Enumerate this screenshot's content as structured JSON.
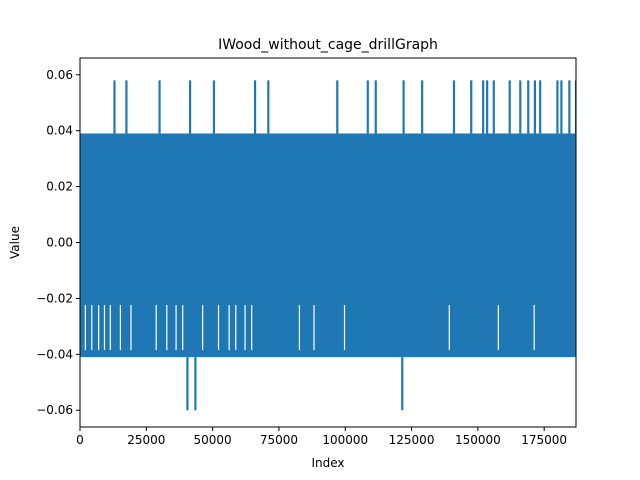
{
  "chart_data": {
    "type": "line",
    "title": "IWood_without_cage_drillGraph",
    "xlabel": "Index",
    "ylabel": "Value",
    "xlim": [
      0,
      187000
    ],
    "ylim": [
      -0.066,
      0.066
    ],
    "xticks": [
      0,
      25000,
      50000,
      75000,
      100000,
      125000,
      150000,
      175000
    ],
    "xtick_labels": [
      "0",
      "25000",
      "50000",
      "75000",
      "100000",
      "125000",
      "150000",
      "175000"
    ],
    "yticks": [
      -0.06,
      -0.04,
      -0.02,
      0.0,
      0.02,
      0.04,
      0.06
    ],
    "ytick_labels": [
      "−0.06",
      "−0.04",
      "−0.02",
      "0.00",
      "0.02",
      "0.04",
      "0.06"
    ],
    "grid": false,
    "series": [
      {
        "color": "#1f77b4",
        "envelope": {
          "x_range": [
            0,
            187000
          ],
          "band_high": 0.039,
          "band_low": -0.041,
          "dense_low": -0.022
        },
        "spikes_high": {
          "value": 0.058,
          "x": [
            13000,
            17500,
            30000,
            41500,
            50500,
            66000,
            71000,
            97000,
            108500,
            111500,
            122000,
            129000,
            141000,
            147500,
            152000,
            153500,
            156000,
            162000,
            166000,
            169000,
            171500,
            173500,
            180000,
            181500,
            184500,
            187000
          ]
        },
        "spikes_low": {
          "value": -0.06,
          "x": [
            40500,
            43500,
            121500
          ]
        }
      }
    ]
  }
}
